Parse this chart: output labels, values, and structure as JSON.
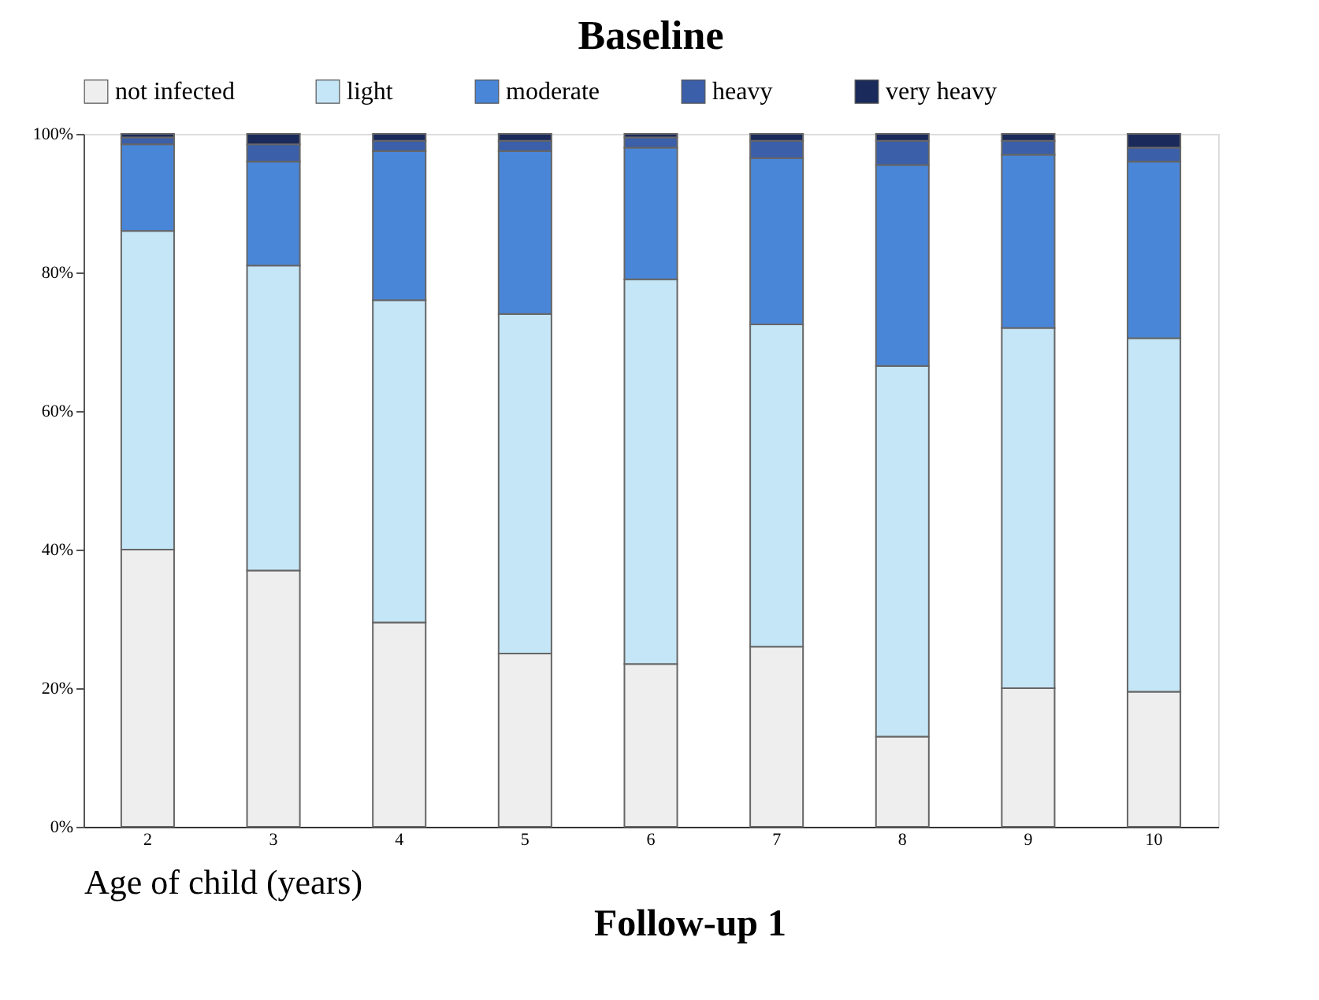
{
  "chart_data": {
    "type": "bar",
    "title": "Baseline",
    "xlabel": "Age of child (years)",
    "categories": [
      "2",
      "3",
      "4",
      "5",
      "6",
      "7",
      "8",
      "9",
      "10"
    ],
    "stacked": true,
    "series": [
      {
        "name": "not infected",
        "color": "#eeeeee",
        "values": [
          40,
          37,
          29.5,
          25,
          23.5,
          26,
          13,
          20,
          19.5
        ]
      },
      {
        "name": "light",
        "color": "#c5e6f7",
        "values": [
          46,
          44,
          46.5,
          49,
          55.5,
          46.5,
          53.5,
          52,
          51
        ]
      },
      {
        "name": "moderate",
        "color": "#4a86d8",
        "values": [
          12.5,
          15,
          21.5,
          23.5,
          19,
          24,
          29,
          25,
          25.5
        ]
      },
      {
        "name": "heavy",
        "color": "#3b5fa8",
        "values": [
          1,
          2.5,
          1.5,
          1.5,
          1.5,
          2.5,
          3.5,
          2,
          2
        ]
      },
      {
        "name": "very heavy",
        "color": "#1a2a5a",
        "values": [
          0.5,
          1.5,
          1,
          1,
          0.5,
          1,
          1,
          1,
          2
        ]
      }
    ],
    "ylim": [
      0,
      100
    ],
    "yticks": [
      {
        "value": 0,
        "label": "0%"
      },
      {
        "value": 20,
        "label": "20%"
      },
      {
        "value": 40,
        "label": "40%"
      },
      {
        "value": 60,
        "label": "60%"
      },
      {
        "value": 80,
        "label": "80%"
      },
      {
        "value": 100,
        "label": "100%"
      }
    ],
    "grid": false,
    "legend": "top",
    "annotations": [
      "Follow-up 1"
    ]
  }
}
